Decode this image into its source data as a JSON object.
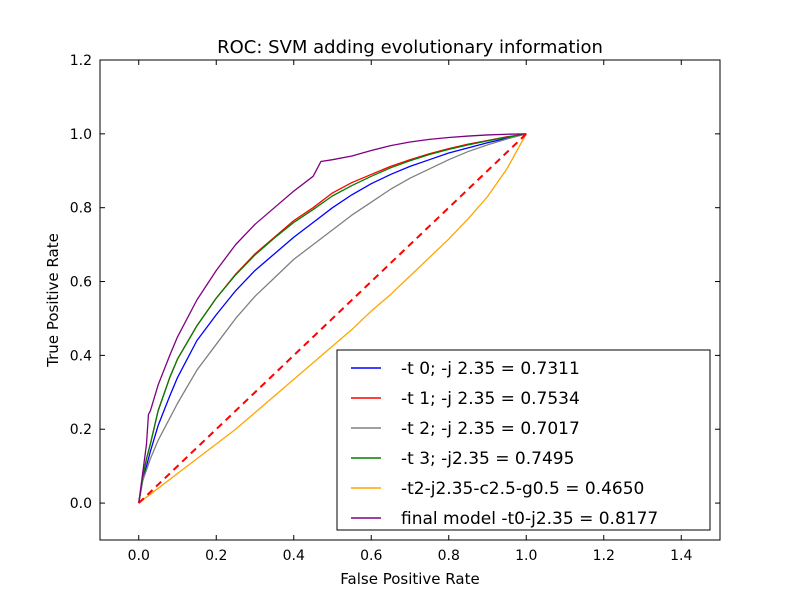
{
  "chart_data": {
    "type": "line",
    "title": "ROC: SVM adding evolutionary information",
    "xlabel": "False Positive Rate",
    "ylabel": "True Positive Rate",
    "xlim": [
      -0.1,
      1.5
    ],
    "ylim": [
      -0.1,
      1.2
    ],
    "xticks": [
      0.0,
      0.2,
      0.4,
      0.6,
      0.8,
      1.0,
      1.2,
      1.4
    ],
    "xtick_labels": [
      "0.0",
      "0.2",
      "0.4",
      "0.6",
      "0.8",
      "1.0",
      "1.2",
      "1.4"
    ],
    "yticks": [
      0.0,
      0.2,
      0.4,
      0.6,
      0.8,
      1.0,
      1.2
    ],
    "ytick_labels": [
      "0.0",
      "0.2",
      "0.4",
      "0.6",
      "0.8",
      "1.0",
      "1.2"
    ],
    "grid": false,
    "legend_position": "lower-right",
    "reference_line": {
      "x": [
        0,
        1
      ],
      "y": [
        0,
        1
      ],
      "color": "#ff0000",
      "style": "dashed"
    },
    "series": [
      {
        "name": "-t 0; -j 2.35 = 0.7311",
        "color": "#0000ff",
        "x": [
          0,
          0.01,
          0.02,
          0.03,
          0.05,
          0.08,
          0.1,
          0.15,
          0.2,
          0.25,
          0.3,
          0.35,
          0.4,
          0.45,
          0.5,
          0.55,
          0.6,
          0.65,
          0.7,
          0.75,
          0.8,
          0.85,
          0.9,
          0.95,
          1.0
        ],
        "y": [
          0,
          0.06,
          0.1,
          0.14,
          0.21,
          0.29,
          0.34,
          0.44,
          0.51,
          0.575,
          0.63,
          0.675,
          0.72,
          0.76,
          0.8,
          0.835,
          0.865,
          0.89,
          0.912,
          0.93,
          0.948,
          0.962,
          0.976,
          0.988,
          1.0
        ]
      },
      {
        "name": "-t 1; -j 2.35 = 0.7534",
        "color": "#ff0000",
        "x": [
          0,
          0.01,
          0.02,
          0.03,
          0.05,
          0.08,
          0.1,
          0.15,
          0.2,
          0.25,
          0.3,
          0.35,
          0.4,
          0.45,
          0.5,
          0.55,
          0.6,
          0.65,
          0.7,
          0.75,
          0.8,
          0.85,
          0.9,
          0.95,
          1.0
        ],
        "y": [
          0,
          0.07,
          0.12,
          0.16,
          0.25,
          0.34,
          0.39,
          0.48,
          0.555,
          0.62,
          0.675,
          0.72,
          0.765,
          0.8,
          0.84,
          0.868,
          0.89,
          0.912,
          0.93,
          0.946,
          0.96,
          0.972,
          0.982,
          0.992,
          1.0
        ]
      },
      {
        "name": "-t 2; -j 2.35 = 0.7017",
        "color": "#808080",
        "x": [
          0,
          0.01,
          0.02,
          0.03,
          0.05,
          0.08,
          0.1,
          0.15,
          0.2,
          0.25,
          0.3,
          0.35,
          0.4,
          0.45,
          0.5,
          0.55,
          0.6,
          0.65,
          0.7,
          0.75,
          0.8,
          0.85,
          0.9,
          0.95,
          1.0
        ],
        "y": [
          0,
          0.06,
          0.09,
          0.12,
          0.17,
          0.23,
          0.27,
          0.36,
          0.43,
          0.5,
          0.56,
          0.61,
          0.66,
          0.7,
          0.74,
          0.78,
          0.815,
          0.85,
          0.88,
          0.905,
          0.93,
          0.952,
          0.97,
          0.986,
          1.0
        ]
      },
      {
        "name": "-t 3; -j2.35 = 0.7495",
        "color": "#008000",
        "x": [
          0,
          0.01,
          0.02,
          0.03,
          0.05,
          0.08,
          0.1,
          0.15,
          0.2,
          0.25,
          0.3,
          0.35,
          0.4,
          0.45,
          0.5,
          0.55,
          0.6,
          0.65,
          0.7,
          0.75,
          0.8,
          0.85,
          0.9,
          0.95,
          1.0
        ],
        "y": [
          0,
          0.07,
          0.12,
          0.16,
          0.25,
          0.34,
          0.39,
          0.48,
          0.555,
          0.618,
          0.672,
          0.718,
          0.76,
          0.795,
          0.832,
          0.86,
          0.885,
          0.908,
          0.927,
          0.944,
          0.958,
          0.97,
          0.981,
          0.991,
          1.0
        ]
      },
      {
        "name": "-t2-j2.35-c2.5-g0.5 = 0.4650",
        "color": "#ffa500",
        "x": [
          0,
          0.05,
          0.1,
          0.15,
          0.2,
          0.25,
          0.3,
          0.35,
          0.4,
          0.45,
          0.5,
          0.55,
          0.6,
          0.65,
          0.7,
          0.75,
          0.8,
          0.85,
          0.9,
          0.95,
          1.0
        ],
        "y": [
          0,
          0.04,
          0.08,
          0.12,
          0.16,
          0.2,
          0.245,
          0.29,
          0.335,
          0.38,
          0.425,
          0.47,
          0.52,
          0.565,
          0.615,
          0.665,
          0.715,
          0.77,
          0.83,
          0.905,
          1.0
        ]
      },
      {
        "name": "final model -t0-j2.35 = 0.8177",
        "color": "#800080",
        "x": [
          0,
          0.01,
          0.02,
          0.025,
          0.03,
          0.05,
          0.08,
          0.1,
          0.15,
          0.2,
          0.25,
          0.3,
          0.35,
          0.4,
          0.45,
          0.47,
          0.5,
          0.55,
          0.6,
          0.65,
          0.7,
          0.75,
          0.8,
          0.85,
          0.9,
          0.95,
          1.0
        ],
        "y": [
          0,
          0.08,
          0.16,
          0.24,
          0.25,
          0.32,
          0.4,
          0.45,
          0.55,
          0.63,
          0.7,
          0.755,
          0.8,
          0.845,
          0.885,
          0.925,
          0.93,
          0.94,
          0.955,
          0.968,
          0.978,
          0.985,
          0.99,
          0.994,
          0.997,
          0.999,
          1.0
        ]
      }
    ]
  }
}
